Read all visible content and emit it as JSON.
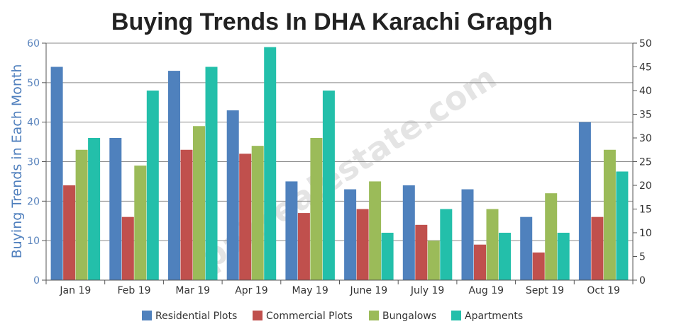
{
  "chart_data": {
    "type": "bar",
    "title": "Buying Trends In DHA Karachi Grapgh",
    "ylabel": "Buying Trends in Each Month",
    "categories": [
      "Jan 19",
      "Feb 19",
      "Mar 19",
      "Apr 19",
      "May 19",
      "June 19",
      "July 19",
      "Aug 19",
      "Sept 19",
      "Oct 19"
    ],
    "ylim": [
      0,
      60
    ],
    "y2lim": [
      0,
      50
    ],
    "yticks": [
      0,
      10,
      20,
      30,
      40,
      50,
      60
    ],
    "y2ticks": [
      0,
      5,
      10,
      15,
      20,
      25,
      30,
      35,
      40,
      45,
      50
    ],
    "grid": true,
    "legend": "bottom",
    "watermark": "pakrealestate.com",
    "series": [
      {
        "name": "Residential Plots",
        "color": "#4f81bd",
        "values": [
          54,
          36,
          53,
          43,
          25,
          23,
          24,
          23,
          16,
          40
        ]
      },
      {
        "name": "Commercial Plots",
        "color": "#c0504d",
        "values": [
          24,
          16,
          33,
          32,
          17,
          18,
          14,
          9,
          7,
          16
        ]
      },
      {
        "name": "Bungalows",
        "color": "#9bbb59",
        "values": [
          33,
          29,
          39,
          34,
          36,
          25,
          10,
          18,
          22,
          33
        ]
      },
      {
        "name": "Apartments",
        "color": "#23bfaa",
        "values": [
          36,
          48,
          54,
          59,
          48,
          12,
          18,
          12,
          12,
          27.5
        ]
      }
    ]
  }
}
